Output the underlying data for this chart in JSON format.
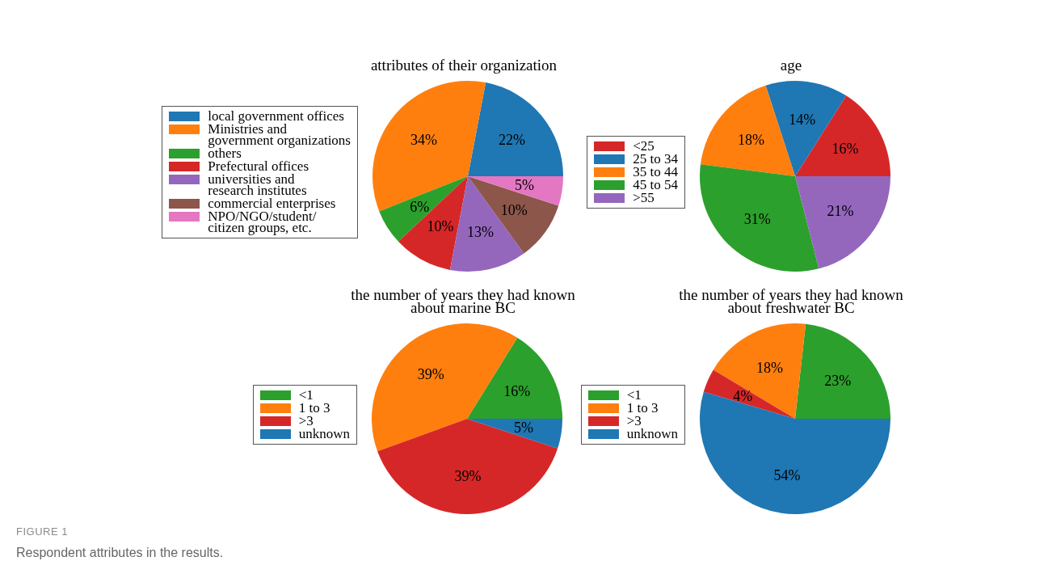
{
  "chart_data": [
    {
      "type": "pie",
      "title": "attributes of their organization",
      "categories": [
        "local government offices",
        "Ministries and\ngovernment organizations",
        "others",
        "Prefectural offices",
        "universities and\nresearch institutes",
        "commercial enterprises",
        "NPO/NGO/student/\ncitizen groups, etc."
      ],
      "values": [
        22,
        34,
        6,
        10,
        13,
        10,
        5
      ],
      "value_labels": [
        "22%",
        "34%",
        "6%",
        "10%",
        "13%",
        "10%",
        "5%"
      ],
      "colors": [
        "#1f77b4",
        "#ff7f0e",
        "#2ca02c",
        "#d62728",
        "#9467bd",
        "#8c564b",
        "#e377c2"
      ],
      "legend": "left"
    },
    {
      "type": "pie",
      "title": "age",
      "categories": [
        "<25",
        "25 to 34",
        "35 to 44",
        "45 to 54",
        ">55"
      ],
      "values": [
        16,
        14,
        18,
        31,
        21
      ],
      "value_labels": [
        "16%",
        "14%",
        "18%",
        "31%",
        "21%"
      ],
      "colors": [
        "#d62728",
        "#1f77b4",
        "#ff7f0e",
        "#2ca02c",
        "#9467bd"
      ],
      "legend": "left"
    },
    {
      "type": "pie",
      "title": "the number of years they had known\nabout marine BC",
      "categories": [
        "<1",
        "1 to 3",
        ">3",
        "unknown"
      ],
      "values": [
        16,
        39,
        39,
        5
      ],
      "value_labels": [
        "16%",
        "39%",
        "39%",
        "5%"
      ],
      "colors": [
        "#2ca02c",
        "#ff7f0e",
        "#d62728",
        "#1f77b4"
      ],
      "legend": "left"
    },
    {
      "type": "pie",
      "title": "the number of years they had known\nabout freshwater BC",
      "categories": [
        "<1",
        "1 to 3",
        ">3",
        "unknown"
      ],
      "values": [
        23,
        18,
        4,
        54
      ],
      "value_labels": [
        "23%",
        "18%",
        "4%",
        "54%"
      ],
      "colors": [
        "#2ca02c",
        "#ff7f0e",
        "#d62728",
        "#1f77b4"
      ],
      "legend": "left",
      "annotations": [
        "FIGURE 1",
        "Respondent attributes in the results."
      ]
    }
  ]
}
